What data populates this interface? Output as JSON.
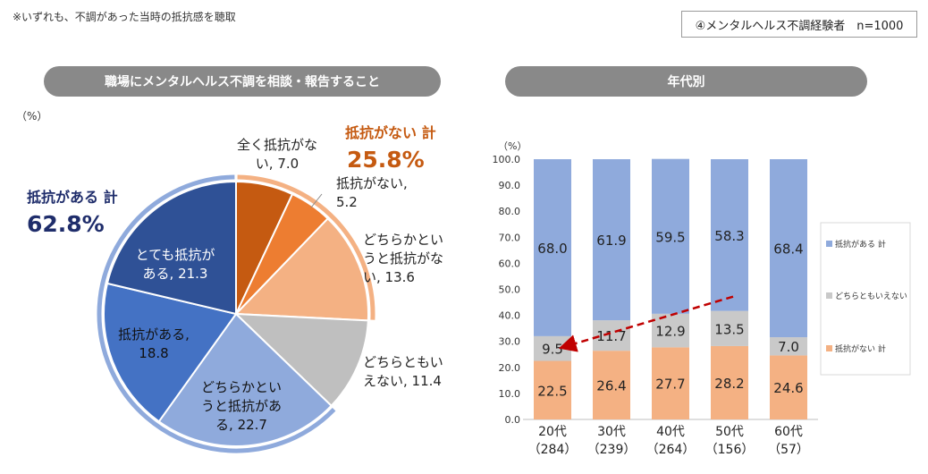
{
  "header": {
    "note": "※いずれも、不調があった当時の抵抗感を聴取",
    "sample": "④メンタルヘルス不調経験者　n=1000"
  },
  "pie_panel": {
    "title": "職場にメンタルヘルス不調を相談・報告すること",
    "unit": "（%）"
  },
  "bar_panel": {
    "title": "年代別"
  },
  "colors": {
    "resist_strong": "#2f5196",
    "resist": "#4472c4",
    "resist_soft": "#8faadc",
    "neutral": "#bfbfbf",
    "noresist_soft": "#f4b183",
    "noresist": "#ed7d31",
    "noresist_strong": "#c55a11",
    "bar_resist": "#8faadc",
    "bar_neutral": "#c9c9c9",
    "bar_noresist": "#f4b183",
    "total_resist_text": "#1f2d6b",
    "total_noresist_text": "#c55a11",
    "trend_arrow": "#c00000"
  },
  "chart_data": [
    {
      "type": "pie",
      "title": "職場にメンタルヘルス不調を相談・報告すること",
      "unit": "（%）",
      "slices": [
        {
          "label": "全く抵抗がない",
          "value": 7.0,
          "text_lines": [
            "全く抵抗がな",
            "い, 7.0"
          ],
          "color_key": "noresist_strong"
        },
        {
          "label": "抵抗がない",
          "value": 5.2,
          "text_lines": [
            "抵抗がない,",
            "5.2"
          ],
          "color_key": "noresist"
        },
        {
          "label": "どちらかというと抵抗がない",
          "value": 13.6,
          "text_lines": [
            "どちらかとい",
            "うと抵抗がな",
            "い, 13.6"
          ],
          "color_key": "noresist_soft"
        },
        {
          "label": "どちらともいえない",
          "value": 11.4,
          "text_lines": [
            "どちらともい",
            "えない, 11.4"
          ],
          "color_key": "neutral"
        },
        {
          "label": "どちらかというと抵抗がある",
          "value": 22.7,
          "text_lines": [
            "どちらかとい",
            "うと抵抗があ",
            "る, 22.7"
          ],
          "color_key": "resist_soft"
        },
        {
          "label": "抵抗がある",
          "value": 18.8,
          "text_lines": [
            "抵抗がある,",
            "18.8"
          ],
          "color_key": "resist"
        },
        {
          "label": "とても抵抗がある",
          "value": 21.3,
          "text_lines": [
            "とても抵抗が",
            "ある, 21.3"
          ],
          "color_key": "resist_strong"
        }
      ],
      "totals": [
        {
          "label": "抵抗がない  計",
          "value": "25.8%"
        },
        {
          "label": "抵抗がある  計",
          "value": "62.8%"
        }
      ]
    },
    {
      "type": "bar",
      "stacked": true,
      "title": "年代別",
      "ylabel": "（%）",
      "ylim": [
        0,
        100
      ],
      "yticks": [
        "0.0",
        "10.0",
        "20.0",
        "30.0",
        "40.0",
        "50.0",
        "60.0",
        "70.0",
        "80.0",
        "90.0",
        "100.0"
      ],
      "categories": [
        {
          "name": "20代",
          "n": "（284）"
        },
        {
          "name": "30代",
          "n": "（239）"
        },
        {
          "name": "40代",
          "n": "（264）"
        },
        {
          "name": "50代",
          "n": "（156）"
        },
        {
          "name": "60代",
          "n": "（57）"
        }
      ],
      "series": [
        {
          "name": "抵抗がない  計",
          "values": [
            22.5,
            26.4,
            27.7,
            28.2,
            24.6
          ],
          "color_key": "bar_noresist"
        },
        {
          "name": "どちらともいえない",
          "values": [
            9.5,
            11.7,
            12.9,
            13.5,
            7.0
          ],
          "color_key": "bar_neutral"
        },
        {
          "name": "抵抗がある  計",
          "values": [
            68.0,
            61.9,
            59.5,
            58.3,
            68.4
          ],
          "color_key": "bar_resist"
        }
      ],
      "legend": [
        "抵抗がある  計",
        "どちらともいえない",
        "抵抗がない  計"
      ],
      "legend_position": "right",
      "grid": false
    }
  ]
}
